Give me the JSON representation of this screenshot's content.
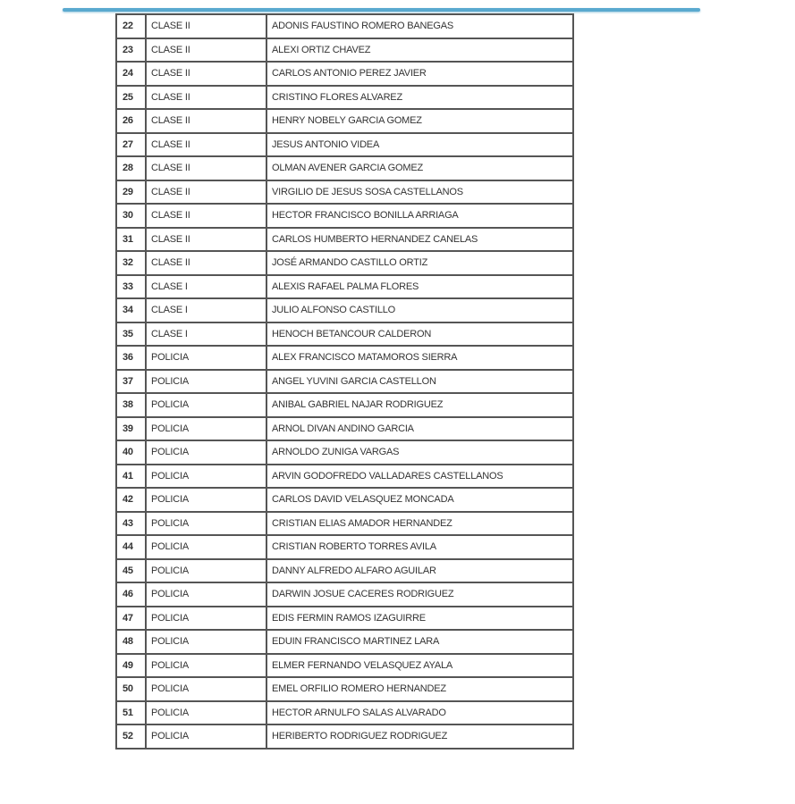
{
  "accent_color": "#5aa9cf",
  "rows": [
    {
      "num": "22",
      "rank": "CLASE II",
      "name": "ADONIS FAUSTINO ROMERO BANEGAS"
    },
    {
      "num": "23",
      "rank": "CLASE II",
      "name": "ALEXI ORTIZ CHAVEZ"
    },
    {
      "num": "24",
      "rank": "CLASE II",
      "name": "CARLOS ANTONIO PEREZ JAVIER"
    },
    {
      "num": "25",
      "rank": "CLASE II",
      "name": "CRISTINO FLORES ALVAREZ"
    },
    {
      "num": "26",
      "rank": "CLASE II",
      "name": "HENRY NOBELY GARCIA GOMEZ"
    },
    {
      "num": "27",
      "rank": "CLASE II",
      "name": "JESUS ANTONIO VIDEA"
    },
    {
      "num": "28",
      "rank": "CLASE II",
      "name": "OLMAN AVENER GARCIA GOMEZ"
    },
    {
      "num": "29",
      "rank": "CLASE II",
      "name": "VIRGILIO DE JESUS SOSA CASTELLANOS"
    },
    {
      "num": "30",
      "rank": "CLASE II",
      "name": "HECTOR FRANCISCO BONILLA ARRIAGA"
    },
    {
      "num": "31",
      "rank": "CLASE II",
      "name": "CARLOS HUMBERTO HERNANDEZ CANELAS"
    },
    {
      "num": "32",
      "rank": "CLASE II",
      "name": "JOSÉ ARMANDO CASTILLO ORTIZ"
    },
    {
      "num": "33",
      "rank": "CLASE I",
      "name": "ALEXIS RAFAEL PALMA FLORES"
    },
    {
      "num": "34",
      "rank": "CLASE I",
      "name": "JULIO ALFONSO CASTILLO"
    },
    {
      "num": "35",
      "rank": "CLASE I",
      "name": "HENOCH  BETANCOUR CALDERON"
    },
    {
      "num": "36",
      "rank": "POLICIA",
      "name": "ALEX FRANCISCO MATAMOROS SIERRA"
    },
    {
      "num": "37",
      "rank": "POLICIA",
      "name": "ANGEL YUVINI GARCIA CASTELLON"
    },
    {
      "num": "38",
      "rank": "POLICIA",
      "name": "ANIBAL GABRIEL NAJAR RODRIGUEZ"
    },
    {
      "num": "39",
      "rank": "POLICIA",
      "name": "ARNOL DIVAN ANDINO GARCIA"
    },
    {
      "num": "40",
      "rank": "POLICIA",
      "name": "ARNOLDO ZUNIGA VARGAS"
    },
    {
      "num": "41",
      "rank": "POLICIA",
      "name": "ARVIN GODOFREDO VALLADARES CASTELLANOS"
    },
    {
      "num": "42",
      "rank": "POLICIA",
      "name": "CARLOS DAVID VELASQUEZ MONCADA"
    },
    {
      "num": "43",
      "rank": "POLICIA",
      "name": "CRISTIAN ELIAS AMADOR HERNANDEZ"
    },
    {
      "num": "44",
      "rank": "POLICIA",
      "name": "CRISTIAN ROBERTO TORRES AVILA"
    },
    {
      "num": "45",
      "rank": "POLICIA",
      "name": "DANNY ALFREDO ALFARO AGUILAR"
    },
    {
      "num": "46",
      "rank": "POLICIA",
      "name": "DARWIN JOSUE CACERES RODRIGUEZ"
    },
    {
      "num": "47",
      "rank": "POLICIA",
      "name": "EDIS FERMIN RAMOS IZAGUIRRE"
    },
    {
      "num": "48",
      "rank": "POLICIA",
      "name": "EDUIN FRANCISCO MARTINEZ LARA"
    },
    {
      "num": "49",
      "rank": "POLICIA",
      "name": "ELMER FERNANDO VELASQUEZ AYALA"
    },
    {
      "num": "50",
      "rank": "POLICIA",
      "name": "EMEL ORFILIO ROMERO HERNANDEZ"
    },
    {
      "num": "51",
      "rank": "POLICIA",
      "name": "HECTOR ARNULFO SALAS ALVARADO"
    },
    {
      "num": "52",
      "rank": "POLICIA",
      "name": "HERIBERTO RODRIGUEZ RODRIGUEZ"
    }
  ]
}
